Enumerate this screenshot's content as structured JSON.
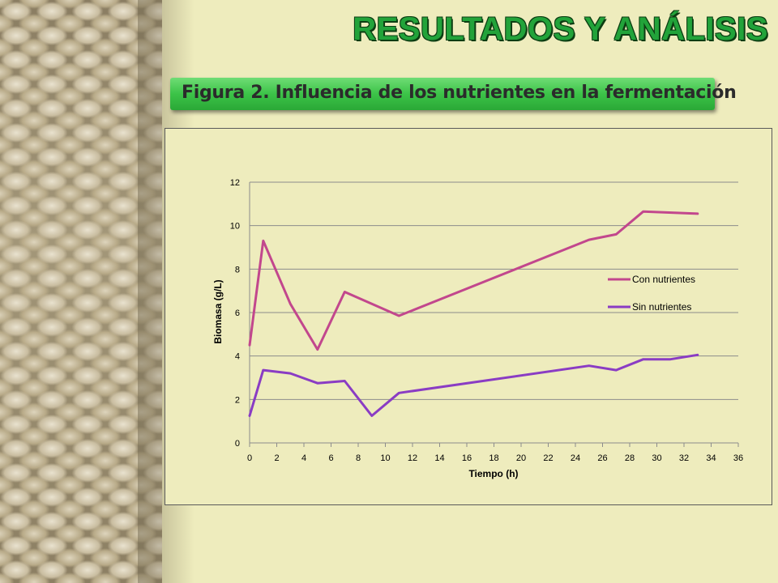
{
  "slide": {
    "title": "RESULTADOS Y ANÁLISIS",
    "caption": "Figura 2. Influencia de los nutrientes en la fermentación"
  },
  "colors": {
    "con": "#c2478d",
    "sin": "#8a3cc4",
    "title_green": "#22a33a",
    "caption_green": "#3cc348"
  },
  "chart_data": {
    "type": "line",
    "title": "",
    "xlabel": "Tiempo (h)",
    "ylabel": "Biomasa (g/L)",
    "xlim": [
      0,
      36
    ],
    "ylim": [
      0,
      12
    ],
    "x_ticks": [
      0,
      2,
      4,
      6,
      8,
      10,
      12,
      14,
      16,
      18,
      20,
      22,
      24,
      26,
      28,
      30,
      32,
      34,
      36
    ],
    "y_ticks": [
      0,
      2,
      4,
      6,
      8,
      10,
      12
    ],
    "grid": "horizontal",
    "legend": "right",
    "series": [
      {
        "name": "Con nutrientes",
        "color": "#c2478d",
        "x": [
          0,
          1,
          3,
          5,
          7,
          11,
          25,
          27,
          29,
          33
        ],
        "y": [
          4.5,
          9.3,
          6.4,
          4.3,
          6.95,
          5.85,
          9.35,
          9.6,
          10.65,
          10.55
        ]
      },
      {
        "name": "Sin nutrientes",
        "color": "#8a3cc4",
        "x": [
          0,
          1,
          3,
          5,
          7,
          9,
          11,
          25,
          27,
          29,
          31,
          33
        ],
        "y": [
          1.25,
          3.35,
          3.2,
          2.75,
          2.85,
          1.25,
          2.3,
          3.55,
          3.35,
          3.85,
          3.85,
          4.05
        ]
      }
    ]
  }
}
